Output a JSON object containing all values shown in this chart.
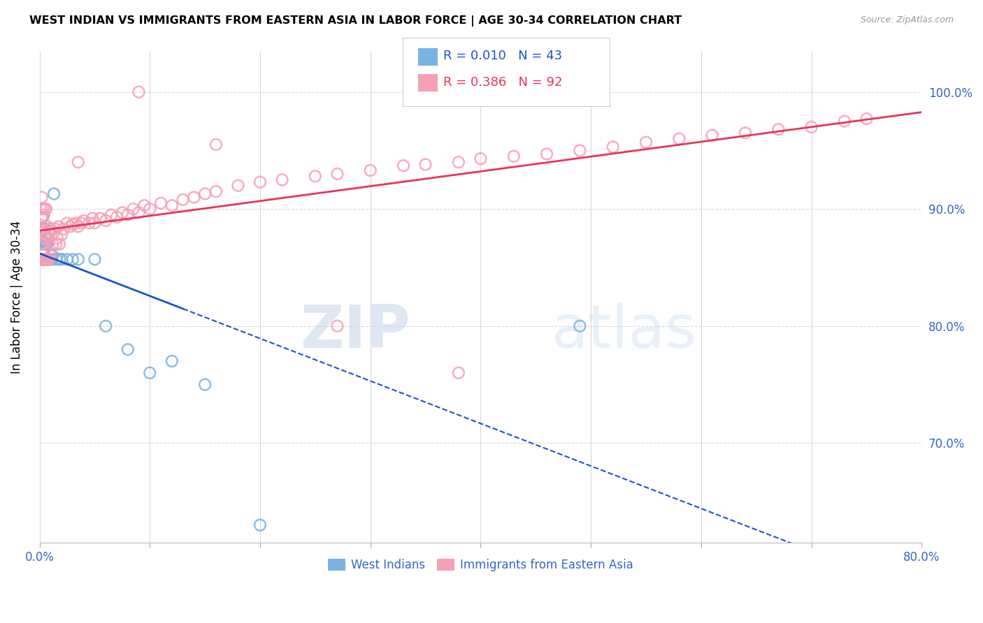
{
  "title": "WEST INDIAN VS IMMIGRANTS FROM EASTERN ASIA IN LABOR FORCE | AGE 30-34 CORRELATION CHART",
  "source": "Source: ZipAtlas.com",
  "ylabel": "In Labor Force | Age 30-34",
  "xlim": [
    0.0,
    0.8
  ],
  "ylim": [
    0.615,
    1.035
  ],
  "yticks": [
    0.7,
    0.8,
    0.9,
    1.0
  ],
  "ytick_labels": [
    "70.0%",
    "80.0%",
    "90.0%",
    "100.0%"
  ],
  "xticks": [
    0.0,
    0.1,
    0.2,
    0.3,
    0.4,
    0.5,
    0.6,
    0.7,
    0.8
  ],
  "xtick_labels": [
    "0.0%",
    "",
    "",
    "",
    "",
    "",
    "",
    "",
    "80.0%"
  ],
  "blue_color": "#7ab3e0",
  "pink_color": "#f5a0b5",
  "blue_line_color": "#1a56cc",
  "pink_line_color": "#e8355a",
  "axis_color": "#3366cc",
  "grid_color": "#d8d8d8",
  "legend_R_blue": "0.010",
  "legend_N_blue": "43",
  "legend_R_pink": "0.386",
  "legend_N_pink": "92",
  "watermark": "ZIPatlas",
  "west_indian_x": [
    0.001,
    0.001,
    0.001,
    0.002,
    0.002,
    0.002,
    0.002,
    0.002,
    0.003,
    0.003,
    0.003,
    0.003,
    0.004,
    0.004,
    0.004,
    0.005,
    0.005,
    0.005,
    0.006,
    0.006,
    0.007,
    0.007,
    0.008,
    0.008,
    0.009,
    0.01,
    0.011,
    0.012,
    0.013,
    0.015,
    0.018,
    0.02,
    0.025,
    0.03,
    0.035,
    0.05,
    0.06,
    0.08,
    0.1,
    0.12,
    0.15,
    0.2,
    0.49
  ],
  "west_indian_y": [
    0.857,
    0.873,
    0.883,
    0.857,
    0.863,
    0.873,
    0.883,
    0.893,
    0.857,
    0.863,
    0.873,
    0.893,
    0.857,
    0.87,
    0.883,
    0.857,
    0.87,
    0.883,
    0.857,
    0.87,
    0.857,
    0.87,
    0.857,
    0.875,
    0.857,
    0.857,
    0.857,
    0.86,
    0.913,
    0.857,
    0.857,
    0.857,
    0.857,
    0.857,
    0.857,
    0.857,
    0.8,
    0.78,
    0.76,
    0.77,
    0.75,
    0.63,
    0.8
  ],
  "east_asia_x": [
    0.001,
    0.001,
    0.001,
    0.001,
    0.002,
    0.002,
    0.002,
    0.002,
    0.002,
    0.003,
    0.003,
    0.003,
    0.003,
    0.004,
    0.004,
    0.004,
    0.005,
    0.005,
    0.005,
    0.006,
    0.006,
    0.006,
    0.007,
    0.007,
    0.008,
    0.008,
    0.009,
    0.009,
    0.01,
    0.01,
    0.012,
    0.013,
    0.014,
    0.015,
    0.016,
    0.017,
    0.018,
    0.02,
    0.022,
    0.025,
    0.028,
    0.03,
    0.033,
    0.035,
    0.038,
    0.04,
    0.045,
    0.048,
    0.05,
    0.055,
    0.06,
    0.065,
    0.07,
    0.075,
    0.08,
    0.085,
    0.09,
    0.095,
    0.1,
    0.11,
    0.12,
    0.13,
    0.14,
    0.15,
    0.16,
    0.18,
    0.2,
    0.22,
    0.25,
    0.27,
    0.3,
    0.33,
    0.35,
    0.38,
    0.4,
    0.43,
    0.46,
    0.49,
    0.52,
    0.55,
    0.58,
    0.61,
    0.64,
    0.67,
    0.7,
    0.73,
    0.75,
    0.38,
    0.27,
    0.16,
    0.09,
    0.035
  ],
  "east_asia_y": [
    0.857,
    0.87,
    0.883,
    0.9,
    0.857,
    0.87,
    0.88,
    0.893,
    0.91,
    0.857,
    0.87,
    0.883,
    0.9,
    0.857,
    0.87,
    0.895,
    0.857,
    0.875,
    0.9,
    0.857,
    0.875,
    0.9,
    0.857,
    0.885,
    0.857,
    0.88,
    0.857,
    0.883,
    0.86,
    0.883,
    0.87,
    0.88,
    0.883,
    0.87,
    0.875,
    0.885,
    0.87,
    0.878,
    0.883,
    0.888,
    0.885,
    0.887,
    0.888,
    0.885,
    0.888,
    0.89,
    0.888,
    0.892,
    0.888,
    0.892,
    0.89,
    0.895,
    0.893,
    0.897,
    0.895,
    0.9,
    0.897,
    0.903,
    0.9,
    0.905,
    0.903,
    0.908,
    0.91,
    0.913,
    0.915,
    0.92,
    0.923,
    0.925,
    0.928,
    0.93,
    0.933,
    0.937,
    0.938,
    0.94,
    0.943,
    0.945,
    0.947,
    0.95,
    0.953,
    0.957,
    0.96,
    0.963,
    0.965,
    0.968,
    0.97,
    0.975,
    0.977,
    0.76,
    0.8,
    0.955,
    1.0,
    0.94
  ]
}
